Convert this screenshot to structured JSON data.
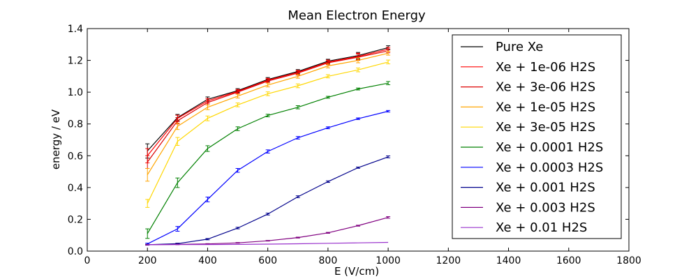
{
  "chart_data": {
    "type": "line",
    "title": "Mean Electron Energy",
    "xlabel": "E (V/cm)",
    "ylabel": "energy / eV",
    "xlim": [
      0,
      1800
    ],
    "ylim": [
      0.0,
      1.4
    ],
    "xticks": [
      0,
      200,
      400,
      600,
      800,
      1000,
      1200,
      1400,
      1600,
      1800
    ],
    "xtick_labels": [
      "0",
      "200",
      "400",
      "600",
      "800",
      "1000",
      "1200",
      "1400",
      "1600",
      "1800"
    ],
    "yticks": [
      0.0,
      0.2,
      0.4,
      0.6,
      0.8,
      1.0,
      1.2,
      1.4
    ],
    "ytick_labels": [
      "0.0",
      "0.2",
      "0.4",
      "0.6",
      "0.8",
      "1.0",
      "1.2",
      "1.4"
    ],
    "grid": false,
    "legend_position": "right",
    "x": [
      200,
      300,
      400,
      500,
      600,
      700,
      800,
      900,
      1000
    ],
    "series": [
      {
        "name": "Pure Xe",
        "color": "#000000",
        "values": [
          0.63,
          0.84,
          0.955,
          1.01,
          1.08,
          1.13,
          1.195,
          1.23,
          1.28
        ],
        "errors": [
          0.045,
          0.02,
          0.015,
          0.012,
          0.012,
          0.012,
          0.012,
          0.02,
          0.012
        ]
      },
      {
        "name": "Xe + 1e-06 H2S",
        "color": "#ff0000",
        "values": [
          0.6,
          0.835,
          0.945,
          1.005,
          1.075,
          1.125,
          1.19,
          1.225,
          1.27
        ],
        "errors": [
          0.045,
          0.02,
          0.015,
          0.012,
          0.012,
          0.012,
          0.012,
          0.02,
          0.012
        ]
      },
      {
        "name": "Xe + 3e-06 H2S",
        "color": "#dd0000",
        "values": [
          0.56,
          0.82,
          0.935,
          1.0,
          1.07,
          1.12,
          1.185,
          1.22,
          1.26
        ],
        "errors": [
          0.04,
          0.02,
          0.015,
          0.012,
          0.012,
          0.012,
          0.012,
          0.02,
          0.012
        ]
      },
      {
        "name": "Xe + 1e-05 H2S",
        "color": "#ffa500",
        "values": [
          0.48,
          0.785,
          0.905,
          0.975,
          1.045,
          1.1,
          1.165,
          1.2,
          1.245
        ],
        "errors": [
          0.04,
          0.02,
          0.015,
          0.012,
          0.012,
          0.012,
          0.012,
          0.015,
          0.012
        ]
      },
      {
        "name": "Xe + 3e-05 H2S",
        "color": "#ffd700",
        "values": [
          0.3,
          0.69,
          0.835,
          0.92,
          0.99,
          1.04,
          1.1,
          1.14,
          1.19
        ],
        "errors": [
          0.025,
          0.025,
          0.015,
          0.012,
          0.012,
          0.012,
          0.01,
          0.012,
          0.012
        ]
      },
      {
        "name": "Xe + 0.0001 H2S",
        "color": "#008000",
        "values": [
          0.11,
          0.43,
          0.645,
          0.77,
          0.853,
          0.905,
          0.968,
          1.02,
          1.057
        ],
        "errors": [
          0.03,
          0.03,
          0.018,
          0.012,
          0.008,
          0.01,
          0.006,
          0.006,
          0.01
        ]
      },
      {
        "name": "Xe + 0.0003 H2S",
        "color": "#0000ff",
        "values": [
          0.045,
          0.14,
          0.325,
          0.508,
          0.627,
          0.713,
          0.776,
          0.833,
          0.88
        ],
        "errors": [
          0.005,
          0.015,
          0.015,
          0.012,
          0.01,
          0.008,
          0.006,
          0.005,
          0.005
        ]
      },
      {
        "name": "Xe + 0.001 H2S",
        "color": "#00008b",
        "values": [
          0.04,
          0.047,
          0.075,
          0.145,
          0.233,
          0.342,
          0.437,
          0.525,
          0.593
        ],
        "errors": [
          0.003,
          0.003,
          0.004,
          0.005,
          0.006,
          0.006,
          0.005,
          0.004,
          0.006
        ]
      },
      {
        "name": "Xe + 0.003 H2S",
        "color": "#800080",
        "values": [
          0.04,
          0.042,
          0.045,
          0.052,
          0.065,
          0.085,
          0.115,
          0.16,
          0.212
        ],
        "errors": [
          0.002,
          0.002,
          0.002,
          0.002,
          0.002,
          0.003,
          0.003,
          0.003,
          0.005
        ]
      },
      {
        "name": "Xe + 0.01 H2S",
        "color": "#9932cc",
        "values": [
          0.04,
          0.041,
          0.041,
          0.042,
          0.044,
          0.046,
          0.049,
          0.052,
          0.055
        ],
        "errors": [
          0.0,
          0.0,
          0.0,
          0.0,
          0.0,
          0.0,
          0.0,
          0.0,
          0.0
        ]
      }
    ]
  }
}
